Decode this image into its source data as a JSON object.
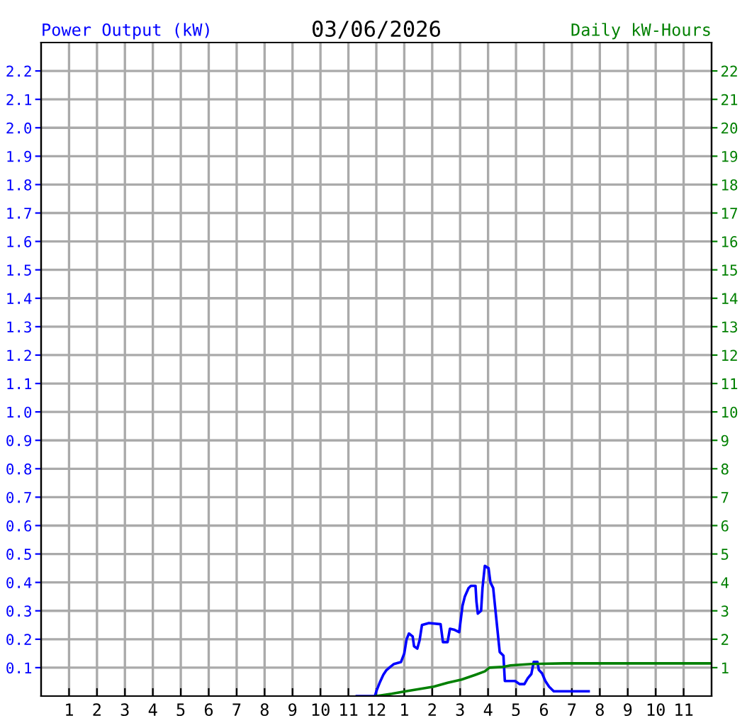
{
  "chart_data": {
    "type": "line",
    "title": "03/06/2026",
    "ylabel": "Power Output (kW)",
    "y2label": "Daily kW-Hours",
    "xlim": [
      "2026-03-06T00:00",
      "2026-03-07T00:00"
    ],
    "xticks": [
      {
        "value": "2026-03-06T01:00",
        "label": "1"
      },
      {
        "value": "2026-03-06T02:00",
        "label": "2"
      },
      {
        "value": "2026-03-06T03:00",
        "label": "3"
      },
      {
        "value": "2026-03-06T04:00",
        "label": "4"
      },
      {
        "value": "2026-03-06T05:00",
        "label": "5"
      },
      {
        "value": "2026-03-06T06:00",
        "label": "6"
      },
      {
        "value": "2026-03-06T07:00",
        "label": "7"
      },
      {
        "value": "2026-03-06T08:00",
        "label": "8"
      },
      {
        "value": "2026-03-06T09:00",
        "label": "9"
      },
      {
        "value": "2026-03-06T10:00",
        "label": "10"
      },
      {
        "value": "2026-03-06T11:00",
        "label": "11"
      },
      {
        "value": "2026-03-06T12:00",
        "label": "12"
      },
      {
        "value": "2026-03-06T13:00",
        "label": "1"
      },
      {
        "value": "2026-03-06T14:00",
        "label": "2"
      },
      {
        "value": "2026-03-06T15:00",
        "label": "3"
      },
      {
        "value": "2026-03-06T16:00",
        "label": "4"
      },
      {
        "value": "2026-03-06T17:00",
        "label": "5"
      },
      {
        "value": "2026-03-06T18:00",
        "label": "6"
      },
      {
        "value": "2026-03-06T19:00",
        "label": "7"
      },
      {
        "value": "2026-03-06T20:00",
        "label": "8"
      },
      {
        "value": "2026-03-06T21:00",
        "label": "9"
      },
      {
        "value": "2026-03-06T22:00",
        "label": "10"
      },
      {
        "value": "2026-03-06T23:00",
        "label": "11"
      }
    ],
    "ylim": [
      0,
      2.3
    ],
    "yticks": [
      0.1,
      0.2,
      0.3,
      0.4,
      0.5,
      0.6,
      0.7,
      0.8,
      0.9,
      {
        "value": 1,
        "label": "1.0"
      },
      1.1,
      1.2,
      1.3,
      1.4,
      1.5,
      1.6,
      1.7,
      1.8,
      1.9,
      {
        "value": 2,
        "label": "2.0"
      },
      2.1,
      2.2
    ],
    "y2lim": [
      0,
      23
    ],
    "y2ticks": [
      1,
      2,
      3,
      4,
      5,
      6,
      7,
      8,
      9,
      10,
      11,
      12,
      13,
      14,
      15,
      16,
      17,
      18,
      19,
      20,
      21,
      22
    ],
    "grid": true,
    "legend": false,
    "marker": "none",
    "line_style": "solid",
    "series": [
      {
        "color": "#0000ff",
        "x": [
          "2026-03-06T11:18",
          "2026-03-06T11:57",
          "2026-03-06T12:00",
          "2026-03-06T12:08",
          "2026-03-06T12:15",
          "2026-03-06T12:21",
          "2026-03-06T12:28",
          "2026-03-06T12:38",
          "2026-03-06T12:53",
          "2026-03-06T13:00",
          "2026-03-06T13:05",
          "2026-03-06T13:10",
          "2026-03-06T13:18",
          "2026-03-06T13:21",
          "2026-03-06T13:28",
          "2026-03-06T13:33",
          "2026-03-06T13:38",
          "2026-03-06T13:53",
          "2026-03-06T14:18",
          "2026-03-06T14:23",
          "2026-03-06T14:33",
          "2026-03-06T14:38",
          "2026-03-06T14:48",
          "2026-03-06T14:58",
          "2026-03-06T15:05",
          "2026-03-06T15:10",
          "2026-03-06T15:18",
          "2026-03-06T15:23",
          "2026-03-06T15:33",
          "2026-03-06T15:35",
          "2026-03-06T15:38",
          "2026-03-06T15:45",
          "2026-03-06T15:48",
          "2026-03-06T15:53",
          "2026-03-06T16:01",
          "2026-03-06T16:05",
          "2026-03-06T16:11",
          "2026-03-06T16:18",
          "2026-03-06T16:25",
          "2026-03-06T16:33",
          "2026-03-06T16:36",
          "2026-03-06T16:58",
          "2026-03-06T17:08",
          "2026-03-06T17:18",
          "2026-03-06T17:25",
          "2026-03-06T17:33",
          "2026-03-06T17:38",
          "2026-03-06T17:46",
          "2026-03-06T17:49",
          "2026-03-06T17:56",
          "2026-03-06T18:03",
          "2026-03-06T18:11",
          "2026-03-06T18:21",
          "2026-03-06T18:36",
          "2026-03-06T19:00",
          "2026-03-06T19:36"
        ],
        "values": [
          0,
          0,
          0.017,
          0.05,
          0.075,
          0.09,
          0.1,
          0.113,
          0.12,
          0.15,
          0.2,
          0.22,
          0.21,
          0.175,
          0.167,
          0.197,
          0.25,
          0.257,
          0.253,
          0.19,
          0.19,
          0.237,
          0.233,
          0.225,
          0.317,
          0.35,
          0.38,
          0.388,
          0.388,
          0.333,
          0.29,
          0.3,
          0.38,
          0.458,
          0.45,
          0.4,
          0.38,
          0.267,
          0.155,
          0.142,
          0.053,
          0.053,
          0.042,
          0.042,
          0.062,
          0.078,
          0.12,
          0.12,
          0.092,
          0.08,
          0.053,
          0.033,
          0.017,
          0.017,
          0.017,
          0.017
        ]
      },
      {
        "color": "#008000",
        "axis": "y2",
        "x": [
          "2026-03-06T12:00",
          "2026-03-06T12:33",
          "2026-03-06T13:03",
          "2026-03-06T13:33",
          "2026-03-06T14:03",
          "2026-03-06T14:33",
          "2026-03-06T15:03",
          "2026-03-06T15:33",
          "2026-03-06T15:53",
          "2026-03-06T16:03",
          "2026-03-06T16:33",
          "2026-03-06T16:48",
          "2026-03-06T17:33",
          "2026-03-06T18:42",
          "2026-03-07T00:00"
        ],
        "values": [
          0,
          0.08,
          0.17,
          0.25,
          0.33,
          0.47,
          0.58,
          0.75,
          0.87,
          1.0,
          1.03,
          1.08,
          1.13,
          1.15,
          1.15
        ]
      }
    ]
  }
}
